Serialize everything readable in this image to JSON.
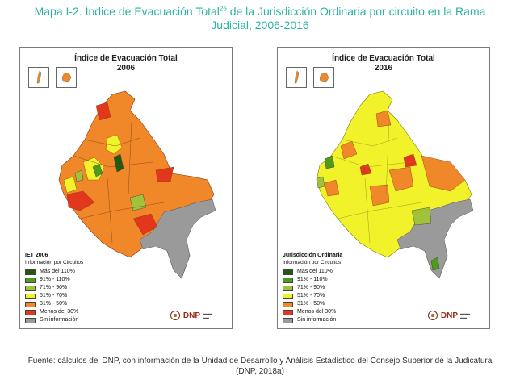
{
  "caption": {
    "prefix": "Mapa I-2. Índice de Evacuación Total",
    "footnote": "26",
    "suffix": " de la Jurisdicción Ordinaria por circuito en la Rama",
    "line2": "Judicial, 2006-2016"
  },
  "colors": {
    "mas_110": "#1f5a12",
    "c91_110": "#4e9a1e",
    "c71_90": "#9fc23a",
    "c51_70": "#f2f22a",
    "c31_50": "#f0882a",
    "menos_30": "#e2371d",
    "sin_info": "#9a9a9a",
    "caption_teal": "#2bb3a3"
  },
  "maps": [
    {
      "title": "Índice de Evacuación Total",
      "year": "2006",
      "legend_title": "IET 2006",
      "legend_subtitle": "Información por Circuitos",
      "dominant_class": "31% - 50%",
      "legend": [
        {
          "label": "Más del 110%",
          "color": "#1f5a12"
        },
        {
          "label": "91% - 110%",
          "color": "#4e9a1e"
        },
        {
          "label": "71% - 90%",
          "color": "#9fc23a"
        },
        {
          "label": "51% - 70%",
          "color": "#f2f22a"
        },
        {
          "label": "31% - 50%",
          "color": "#f0882a"
        },
        {
          "label": "Menos del 30%",
          "color": "#e2371d"
        },
        {
          "label": "Sin información",
          "color": "#9a9a9a"
        }
      ],
      "logo": "DNP"
    },
    {
      "title": "Índice de Evacuación Total",
      "year": "2016",
      "legend_title": "Jurisdicción Ordinaria",
      "legend_subtitle": "Información por Circuitos",
      "dominant_class": "51% - 70%",
      "legend": [
        {
          "label": "Más del 110%",
          "color": "#1f5a12"
        },
        {
          "label": "91% - 110%",
          "color": "#4e9a1e"
        },
        {
          "label": "71% - 90%",
          "color": "#9fc23a"
        },
        {
          "label": "51% - 70%",
          "color": "#f2f22a"
        },
        {
          "label": "31% - 50%",
          "color": "#f0882a"
        },
        {
          "label": "Menos del 30%",
          "color": "#e2371d"
        },
        {
          "label": "Sin información",
          "color": "#9a9a9a"
        }
      ],
      "logo": "DNP"
    }
  ],
  "source": {
    "line1": "Fuente: cálculos del DNP, con información de la Unidad de Desarrollo y Análisis Estadístico del Consejo Superior de la Judicatura",
    "line2": "(DNP, 2018a)"
  }
}
